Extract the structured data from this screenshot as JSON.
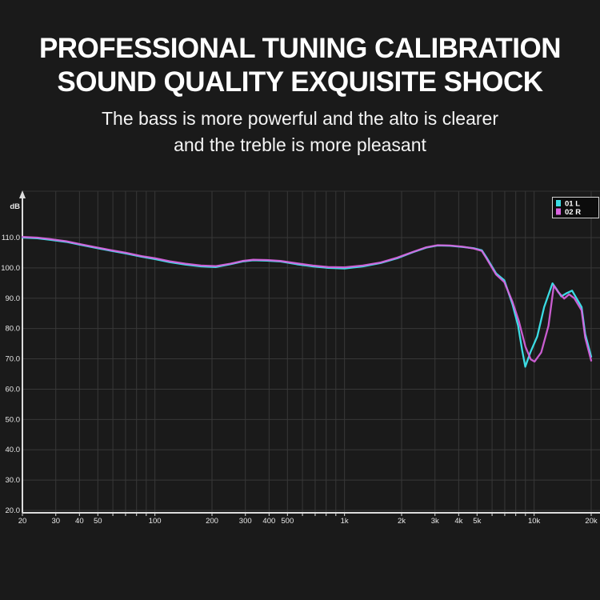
{
  "header": {
    "title_line1": "PROFESSIONAL TUNING CALIBRATION",
    "title_line2": "SOUND QUALITY EXQUISITE SHOCK",
    "subtitle_line1": "The bass is more powerful and the alto is clearer",
    "subtitle_line2": "and the treble is more pleasant"
  },
  "colors": {
    "background": "#1a1a1a",
    "title_text": "#ffffff",
    "grid": "#383838",
    "plot_border": "#333333",
    "axis": "#dcdcdc",
    "tick_text": "#e8e8e8",
    "legend_bg": "#0c0c0c",
    "legend_border": "#d0d0d0",
    "legend_text": "#ffffff",
    "series_left": "#3bdce4",
    "series_right": "#d863de"
  },
  "chart_data": {
    "type": "line",
    "title": "",
    "xlabel": "",
    "ylabel": "dB",
    "x_scale": "log",
    "x_range": [
      20,
      20000
    ],
    "y_range": [
      20,
      110
    ],
    "y_tick_step": 10,
    "y_tick_labels": [
      "110.0",
      "100.0",
      "90.0",
      "80.0",
      "70.0",
      "60.0",
      "50.0",
      "40.0",
      "30.0",
      "20.0"
    ],
    "y_unit_label": "dB",
    "x_ticks": [
      {
        "f": 20,
        "label": "20"
      },
      {
        "f": 30,
        "label": "30"
      },
      {
        "f": 40,
        "label": "40"
      },
      {
        "f": 50,
        "label": "50"
      },
      {
        "f": 100,
        "label": "100"
      },
      {
        "f": 200,
        "label": "200"
      },
      {
        "f": 300,
        "label": "300"
      },
      {
        "f": 400,
        "label": "400"
      },
      {
        "f": 500,
        "label": "500"
      },
      {
        "f": 1000,
        "label": "1k"
      },
      {
        "f": 2000,
        "label": "2k"
      },
      {
        "f": 3000,
        "label": "3k"
      },
      {
        "f": 4000,
        "label": "4k"
      },
      {
        "f": 5000,
        "label": "5k"
      },
      {
        "f": 10000,
        "label": "10k"
      },
      {
        "f": 20000,
        "label": "20k"
      }
    ],
    "grid": true,
    "legend_position": "top-right",
    "legend": [
      {
        "label": "01 L",
        "color": "#3bdce4"
      },
      {
        "label": "02 R",
        "color": "#d863de"
      }
    ],
    "series": [
      {
        "name": "01 L",
        "color": "#3bdce4",
        "points": [
          [
            20,
            110.0
          ],
          [
            24,
            109.8
          ],
          [
            28,
            109.3
          ],
          [
            34,
            108.6
          ],
          [
            40,
            107.7
          ],
          [
            48,
            106.7
          ],
          [
            58,
            105.7
          ],
          [
            70,
            104.8
          ],
          [
            85,
            103.7
          ],
          [
            100,
            102.9
          ],
          [
            120,
            101.9
          ],
          [
            145,
            101.1
          ],
          [
            175,
            100.5
          ],
          [
            210,
            100.3
          ],
          [
            250,
            101.2
          ],
          [
            290,
            102.1
          ],
          [
            330,
            102.5
          ],
          [
            390,
            102.4
          ],
          [
            460,
            102.1
          ],
          [
            560,
            101.2
          ],
          [
            680,
            100.5
          ],
          [
            820,
            100.0
          ],
          [
            1000,
            99.8
          ],
          [
            1250,
            100.5
          ],
          [
            1550,
            101.6
          ],
          [
            1900,
            103.2
          ],
          [
            2300,
            105.2
          ],
          [
            2700,
            106.7
          ],
          [
            3100,
            107.4
          ],
          [
            3600,
            107.3
          ],
          [
            4200,
            106.9
          ],
          [
            4800,
            106.5
          ],
          [
            5300,
            105.8
          ],
          [
            5600,
            103.5
          ],
          [
            6300,
            98.2
          ],
          [
            6960,
            95.9
          ],
          [
            7690,
            88.0
          ],
          [
            8230,
            81.0
          ],
          [
            8640,
            73.0
          ],
          [
            8980,
            67.4
          ],
          [
            9550,
            72.1
          ],
          [
            10390,
            77.4
          ],
          [
            11300,
            87.1
          ],
          [
            12500,
            94.9
          ],
          [
            13200,
            92.8
          ],
          [
            13900,
            90.6
          ],
          [
            14900,
            91.7
          ],
          [
            15850,
            92.5
          ],
          [
            17800,
            87.1
          ],
          [
            18600,
            78.2
          ],
          [
            20000,
            70.7
          ]
        ]
      },
      {
        "name": "02 R",
        "color": "#d863de",
        "points": [
          [
            20,
            110.2
          ],
          [
            24,
            110.0
          ],
          [
            28,
            109.5
          ],
          [
            34,
            108.8
          ],
          [
            40,
            107.9
          ],
          [
            48,
            106.9
          ],
          [
            58,
            105.9
          ],
          [
            70,
            105.0
          ],
          [
            85,
            103.9
          ],
          [
            100,
            103.2
          ],
          [
            120,
            102.2
          ],
          [
            145,
            101.4
          ],
          [
            175,
            100.8
          ],
          [
            210,
            100.6
          ],
          [
            250,
            101.4
          ],
          [
            290,
            102.3
          ],
          [
            330,
            102.7
          ],
          [
            390,
            102.6
          ],
          [
            460,
            102.3
          ],
          [
            560,
            101.5
          ],
          [
            680,
            100.8
          ],
          [
            820,
            100.3
          ],
          [
            1000,
            100.2
          ],
          [
            1250,
            100.8
          ],
          [
            1550,
            101.8
          ],
          [
            1900,
            103.4
          ],
          [
            2300,
            105.3
          ],
          [
            2700,
            106.8
          ],
          [
            3100,
            107.5
          ],
          [
            3600,
            107.4
          ],
          [
            4200,
            107.0
          ],
          [
            4800,
            106.4
          ],
          [
            5300,
            105.6
          ],
          [
            5600,
            103.2
          ],
          [
            6300,
            97.8
          ],
          [
            6960,
            95.3
          ],
          [
            7690,
            88.8
          ],
          [
            8300,
            82.5
          ],
          [
            9000,
            74.0
          ],
          [
            9600,
            69.8
          ],
          [
            10050,
            69.1
          ],
          [
            10900,
            72.1
          ],
          [
            11900,
            80.9
          ],
          [
            12700,
            94.2
          ],
          [
            13400,
            92.0
          ],
          [
            14400,
            89.9
          ],
          [
            15300,
            91.3
          ],
          [
            16300,
            90.0
          ],
          [
            17800,
            86.0
          ],
          [
            18600,
            77.0
          ],
          [
            20000,
            69.4
          ]
        ]
      }
    ]
  }
}
